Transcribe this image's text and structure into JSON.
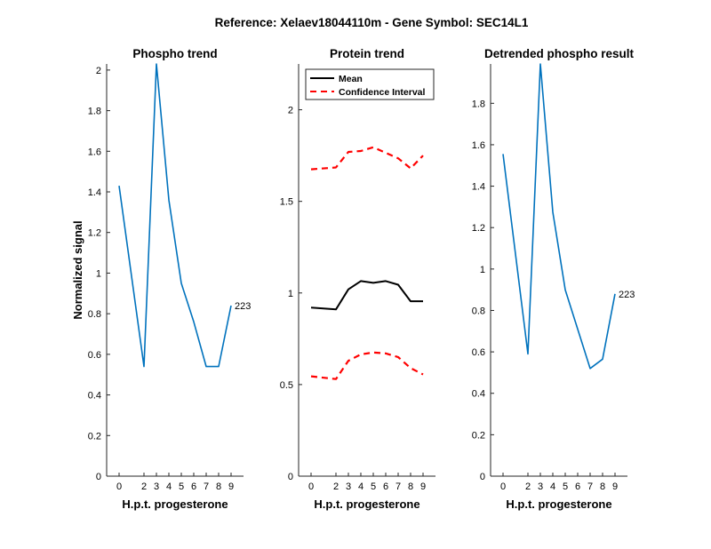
{
  "figure_title": "Reference:  Xelaev18044110m - Gene Symbol:  SEC14L1",
  "colors": {
    "phospho": "#0072BD",
    "mean": "#000000",
    "ci": "#FF0000",
    "axis": "#262626"
  },
  "chart_data": [
    {
      "type": "line",
      "title": "Phospho trend",
      "xlabel": "H.p.t. progesterone",
      "ylabel": "Normalized signal",
      "x": [
        0,
        2,
        3,
        4,
        5,
        6,
        7,
        8,
        9
      ],
      "ylim": [
        0,
        2.03
      ],
      "yticks": [
        0,
        0.2,
        0.4,
        0.6,
        0.8,
        1,
        1.2,
        1.4,
        1.6,
        1.8,
        2
      ],
      "series": [
        {
          "name": "phospho",
          "values": [
            1.43,
            0.54,
            2.03,
            1.36,
            0.95,
            0.76,
            0.54,
            0.54,
            0.84
          ]
        }
      ],
      "annotation": "223"
    },
    {
      "type": "line",
      "title": "Protein trend",
      "xlabel": "H.p.t. progesterone",
      "ylabel": "",
      "x": [
        0,
        2,
        3,
        4,
        5,
        6,
        7,
        8,
        9
      ],
      "ylim": [
        0,
        2.25
      ],
      "yticks": [
        0,
        0.5,
        1,
        1.5,
        2
      ],
      "series": [
        {
          "name": "Mean",
          "values": [
            0.92,
            0.91,
            1.02,
            1.065,
            1.055,
            1.065,
            1.045,
            0.955,
            0.955
          ]
        },
        {
          "name": "Confidence Interval",
          "values": [
            1.675,
            1.685,
            1.77,
            1.775,
            1.795,
            1.765,
            1.735,
            1.68,
            1.75
          ]
        },
        {
          "name": "ci_lower",
          "values": [
            0.545,
            0.53,
            0.63,
            0.665,
            0.675,
            0.67,
            0.65,
            0.59,
            0.555
          ]
        }
      ],
      "legend": [
        "Mean",
        "Confidence Interval"
      ],
      "legend_position": "top-left"
    },
    {
      "type": "line",
      "title": "Detrended phospho result",
      "xlabel": "H.p.t. progesterone",
      "ylabel": "",
      "x": [
        0,
        2,
        3,
        4,
        5,
        6,
        7,
        8,
        9
      ],
      "ylim": [
        0,
        1.99
      ],
      "yticks": [
        0,
        0.2,
        0.4,
        0.6,
        0.8,
        1,
        1.2,
        1.4,
        1.6,
        1.8
      ],
      "series": [
        {
          "name": "detrended",
          "values": [
            1.555,
            0.59,
            1.99,
            1.275,
            0.9,
            0.71,
            0.52,
            0.565,
            0.88
          ]
        }
      ],
      "annotation": "223"
    }
  ]
}
